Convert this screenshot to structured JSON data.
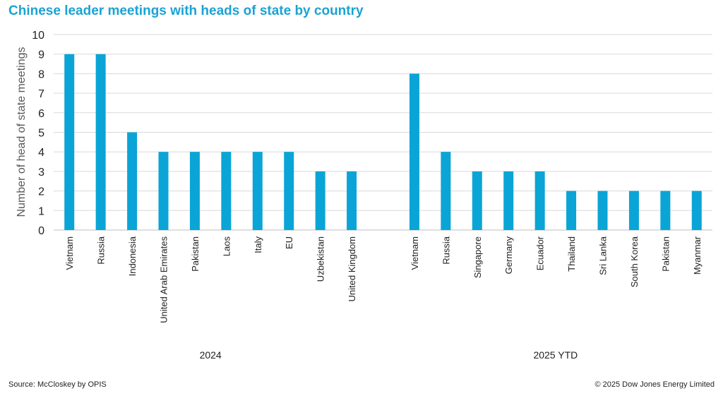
{
  "title": "Chinese leader meetings with heads of state by country",
  "source": "Source: McCloskey by OPIS",
  "copyright": "© 2025 Dow Jones Energy Limited",
  "colors": {
    "bar": "#0aa5d6",
    "title": "#1aa3d4",
    "grid": "#d9d9d9"
  },
  "chart_data": {
    "type": "bar",
    "title": "Chinese leader meetings with heads of state by country",
    "ylabel": "Number of head of state meetings",
    "xlabel": "",
    "ylim": [
      0,
      10
    ],
    "yticks": [
      0,
      1,
      2,
      3,
      4,
      5,
      6,
      7,
      8,
      9,
      10
    ],
    "grid": true,
    "groups": [
      {
        "name": "2024",
        "categories": [
          "Vietnam",
          "Russia",
          "Indonesia",
          "United Arab Emirates",
          "Pakistan",
          "Laos",
          "Italy",
          "EU",
          "Uzbekistan",
          "United Kingdom"
        ],
        "values": [
          9,
          9,
          5,
          4,
          4,
          4,
          4,
          4,
          3,
          3
        ]
      },
      {
        "name": "2025 YTD",
        "categories": [
          "Vietnam",
          "Russia",
          "Singapore",
          "Germany",
          "Ecuador",
          "Thailand",
          "Sri Lanka",
          "South Korea",
          "Pakistan",
          "Myanmar"
        ],
        "values": [
          8,
          4,
          3,
          3,
          3,
          2,
          2,
          2,
          2,
          2
        ]
      }
    ]
  }
}
